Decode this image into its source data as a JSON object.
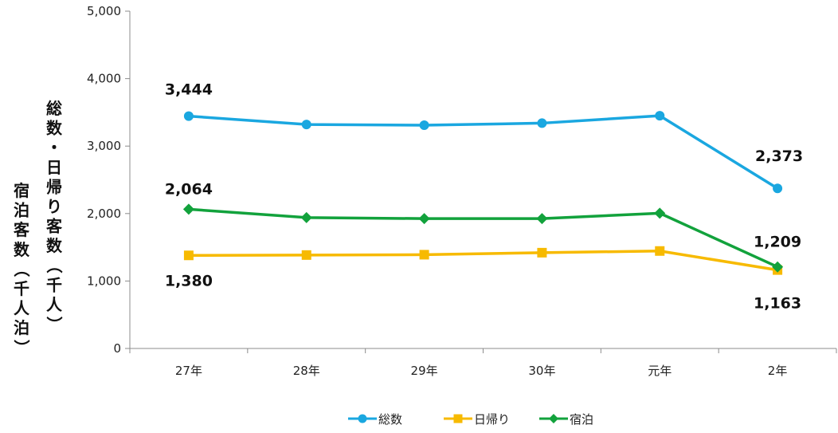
{
  "chart_data": {
    "type": "line",
    "categories": [
      "27年",
      "28年",
      "29年",
      "30年",
      "元年",
      "2年"
    ],
    "ylim": [
      0,
      5000
    ],
    "yticks": [
      0,
      1000,
      2000,
      3000,
      4000,
      5000
    ],
    "ytick_labels": [
      "0",
      "1,000",
      "2,000",
      "3,000",
      "4,000",
      "5,000"
    ],
    "ylabel_primary": "総数・日帰り客数（千人）",
    "ylabel_secondary": "宿泊客数（千人泊）",
    "grid": false,
    "legend": "bottom",
    "series": [
      {
        "name": "総数",
        "color": "#1AA7E0",
        "marker": "circle",
        "values": [
          3444,
          3320,
          3310,
          3340,
          3450,
          2373
        ]
      },
      {
        "name": "日帰り",
        "color": "#F7BA00",
        "marker": "square",
        "values": [
          1380,
          1385,
          1390,
          1420,
          1445,
          1163
        ]
      },
      {
        "name": "宿泊",
        "color": "#12A23C",
        "marker": "diamond",
        "values": [
          2064,
          1940,
          1925,
          1925,
          2005,
          1209
        ]
      }
    ],
    "data_labels": [
      {
        "series": 0,
        "index": 0,
        "text": "3,444"
      },
      {
        "series": 0,
        "index": 5,
        "text": "2,373"
      },
      {
        "series": 2,
        "index": 0,
        "text": "2,064"
      },
      {
        "series": 2,
        "index": 5,
        "text": "1,209"
      },
      {
        "series": 1,
        "index": 0,
        "text": "1,380"
      },
      {
        "series": 1,
        "index": 5,
        "text": "1,163"
      }
    ]
  }
}
